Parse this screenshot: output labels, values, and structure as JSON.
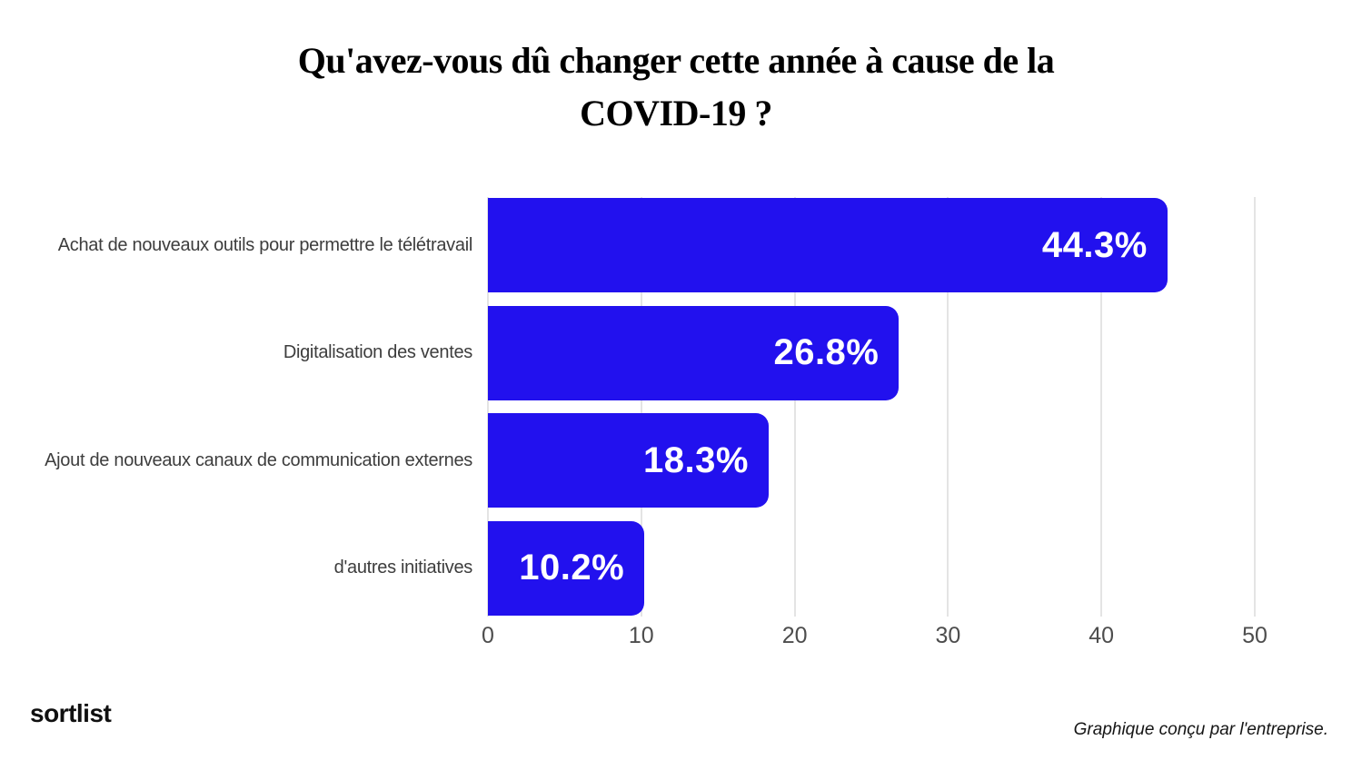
{
  "chart_data": {
    "type": "bar",
    "orientation": "horizontal",
    "title": "Qu'avez-vous dû changer cette année à cause de la COVID-19 ?",
    "title_lines": [
      "Qu'avez-vous dû changer cette année à cause de la",
      "COVID-19 ?"
    ],
    "categories": [
      "Achat de nouveaux outils pour permettre le télétravail",
      "Digitalisation des ventes",
      "Ajout de nouveaux canaux de communication externes",
      "d'autres initiatives"
    ],
    "values": [
      44.3,
      26.8,
      18.3,
      10.2
    ],
    "value_labels": [
      "44.3%",
      "26.8%",
      "18.3%",
      "10.2%"
    ],
    "xlabel": "",
    "ylabel": "",
    "xlim": [
      0,
      50
    ],
    "x_ticks": [
      0,
      10,
      20,
      30,
      40,
      50
    ],
    "grid": true,
    "legend": "none",
    "bar_color": "#2211ee",
    "value_label_color": "#ffffff",
    "gridline_color": "#e4e4e4"
  },
  "footer": {
    "logo_text": "sortlist",
    "attribution": "Graphique conçu par l'entreprise."
  }
}
